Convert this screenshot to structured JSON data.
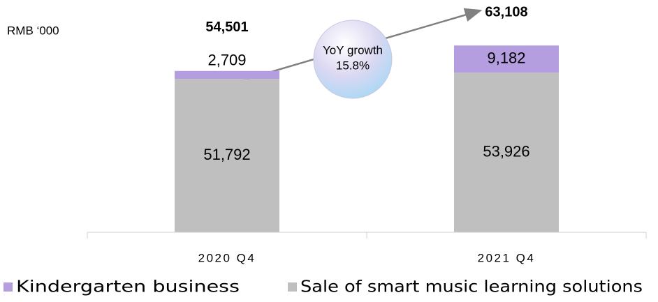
{
  "chart_data": {
    "type": "stacked_bar",
    "unit_label": "RMB ‘000",
    "categories": [
      "2020 Q4",
      "2021 Q4"
    ],
    "series": [
      {
        "name": "Sale of smart music learning solutions",
        "color": "#bfbfbf",
        "values": [
          51792,
          53926
        ],
        "value_labels": [
          "51,792",
          "53,926"
        ]
      },
      {
        "name": "Kindergarten business",
        "color": "#b59ee0",
        "values": [
          2709,
          9182
        ],
        "value_labels": [
          "2,709",
          "9,182"
        ]
      }
    ],
    "totals": [
      54501,
      63108
    ],
    "total_labels": [
      "54,501",
      "63,108"
    ],
    "annotation": {
      "text": "YoY growth",
      "value": 15.8,
      "label": "15.8%"
    },
    "ylim": [
      0,
      70000
    ],
    "legend_order": [
      1,
      0
    ]
  }
}
